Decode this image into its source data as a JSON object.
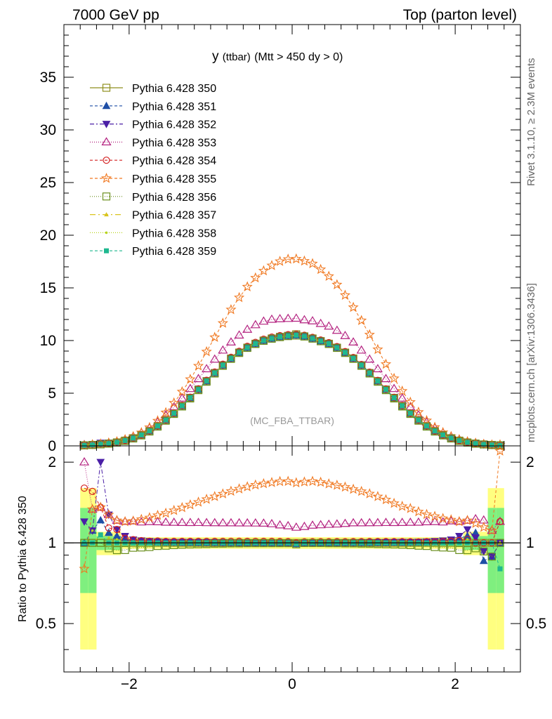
{
  "header": {
    "left": "7000 GeV pp",
    "right": "Top (parton level)",
    "side_top": "Rivet 3.1.10, ≥ 2.3M events",
    "side_bottom": "mcplots.cern.ch [arXiv:1306.3436]"
  },
  "chart_data": [
    {
      "type": "line",
      "title_main": "y",
      "title_small": "(ttbar)",
      "title_rest": "(Mtt > 450 dy > 0)",
      "watermark": "(MC_FBA_TTBAR)",
      "xlabel": "",
      "ylabel": "",
      "xlim": [
        -2.8,
        2.8
      ],
      "ylim": [
        0,
        40
      ],
      "yticks": [
        0,
        5,
        10,
        15,
        20,
        25,
        30,
        35
      ],
      "x": [
        -2.55,
        -2.45,
        -2.35,
        -2.25,
        -2.15,
        -2.05,
        -1.95,
        -1.85,
        -1.75,
        -1.65,
        -1.55,
        -1.45,
        -1.35,
        -1.25,
        -1.15,
        -1.05,
        -0.95,
        -0.85,
        -0.75,
        -0.65,
        -0.55,
        -0.45,
        -0.35,
        -0.25,
        -0.15,
        -0.05,
        0.05,
        0.15,
        0.25,
        0.35,
        0.45,
        0.55,
        0.65,
        0.75,
        0.85,
        0.95,
        1.05,
        1.15,
        1.25,
        1.35,
        1.45,
        1.55,
        1.65,
        1.75,
        1.85,
        1.95,
        2.05,
        2.15,
        2.25,
        2.35,
        2.45,
        2.55
      ],
      "series": [
        {
          "name": "Pythia 6.428 350",
          "color": "#8f8f1f",
          "marker": "square-open",
          "dash": "",
          "values": [
            0.05,
            0.09,
            0.14,
            0.22,
            0.33,
            0.5,
            0.73,
            1.03,
            1.41,
            1.88,
            2.45,
            3.09,
            3.8,
            4.56,
            5.35,
            6.15,
            6.92,
            7.65,
            8.3,
            8.86,
            9.33,
            9.7,
            10.0,
            10.2,
            10.35,
            10.45,
            10.6,
            10.4,
            10.2,
            9.95,
            9.7,
            9.33,
            8.86,
            8.3,
            7.65,
            6.92,
            6.15,
            5.35,
            4.56,
            3.8,
            3.09,
            2.45,
            1.88,
            1.41,
            1.03,
            0.73,
            0.5,
            0.33,
            0.22,
            0.14,
            0.09,
            0.05
          ]
        },
        {
          "name": "Pythia 6.428 351",
          "color": "#1f4fa6",
          "marker": "triangle-up",
          "dash": "4,3",
          "values": [
            0.05,
            0.1,
            0.17,
            0.24,
            0.35,
            0.52,
            0.74,
            1.04,
            1.42,
            1.89,
            2.46,
            3.1,
            3.81,
            4.57,
            5.36,
            6.16,
            6.93,
            7.66,
            8.31,
            8.87,
            9.34,
            9.71,
            10.01,
            10.21,
            10.36,
            10.46,
            10.5,
            10.41,
            10.21,
            9.96,
            9.71,
            9.34,
            8.87,
            8.31,
            7.66,
            6.93,
            6.16,
            5.36,
            4.57,
            3.81,
            3.1,
            2.46,
            1.89,
            1.42,
            1.04,
            0.74,
            0.52,
            0.35,
            0.24,
            0.12,
            0.08,
            0.05
          ]
        },
        {
          "name": "Pythia 6.428 352",
          "color": "#4a1fa6",
          "marker": "triangle-down",
          "dash": "6,3,2,3",
          "values": [
            0.06,
            0.1,
            0.28,
            0.28,
            0.37,
            0.53,
            0.75,
            1.05,
            1.43,
            1.9,
            2.47,
            3.11,
            3.83,
            4.59,
            5.38,
            6.18,
            6.95,
            7.68,
            8.33,
            8.89,
            9.36,
            9.73,
            10.03,
            10.23,
            10.38,
            10.48,
            10.55,
            10.43,
            10.23,
            9.98,
            9.73,
            9.36,
            8.89,
            8.33,
            7.68,
            6.95,
            6.18,
            5.38,
            4.59,
            3.83,
            3.11,
            2.47,
            1.9,
            1.43,
            1.05,
            0.75,
            0.53,
            0.37,
            0.23,
            0.13,
            0.08,
            0.05
          ]
        },
        {
          "name": "Pythia 6.428 353",
          "color": "#b3207f",
          "marker": "triangle-open",
          "dash": "1,2",
          "values": [
            0.1,
            0.12,
            0.19,
            0.28,
            0.4,
            0.6,
            0.88,
            1.23,
            1.69,
            2.25,
            2.92,
            3.68,
            4.52,
            5.42,
            6.36,
            7.3,
            8.21,
            9.07,
            9.84,
            10.5,
            11.05,
            11.48,
            11.82,
            12.0,
            12.05,
            12.08,
            12.1,
            11.95,
            11.85,
            11.6,
            11.35,
            10.95,
            10.45,
            9.84,
            9.07,
            8.21,
            7.3,
            6.36,
            5.42,
            4.52,
            3.68,
            2.92,
            2.25,
            1.69,
            1.23,
            0.88,
            0.6,
            0.4,
            0.27,
            0.17,
            0.1,
            0.06
          ]
        },
        {
          "name": "Pythia 6.428 354",
          "color": "#d42020",
          "marker": "circle-open",
          "dash": "4,3",
          "values": [
            0.08,
            0.14,
            0.19,
            0.25,
            0.37,
            0.52,
            0.75,
            1.05,
            1.43,
            1.91,
            2.48,
            3.13,
            3.85,
            4.62,
            5.42,
            6.23,
            7.01,
            7.75,
            8.41,
            8.98,
            9.45,
            9.83,
            10.13,
            10.33,
            10.47,
            10.56,
            10.6,
            10.5,
            10.3,
            10.05,
            9.8,
            9.43,
            8.95,
            8.39,
            7.73,
            7.0,
            6.22,
            5.41,
            4.61,
            3.84,
            3.12,
            2.47,
            1.9,
            1.42,
            1.04,
            0.74,
            0.51,
            0.34,
            0.22,
            0.14,
            0.09,
            0.06
          ]
        },
        {
          "name": "Pythia 6.428 355",
          "color": "#f07820",
          "marker": "star-open",
          "dash": "4,3",
          "values": [
            0.04,
            0.12,
            0.19,
            0.28,
            0.4,
            0.6,
            0.88,
            1.26,
            1.75,
            2.38,
            3.16,
            4.08,
            5.14,
            6.32,
            7.59,
            8.94,
            10.3,
            11.65,
            12.93,
            14.08,
            15.1,
            15.95,
            16.62,
            17.12,
            17.52,
            17.72,
            17.75,
            17.55,
            17.3,
            16.75,
            16.1,
            15.3,
            14.3,
            13.15,
            11.9,
            10.55,
            9.15,
            7.75,
            6.4,
            5.2,
            4.15,
            3.2,
            2.4,
            1.77,
            1.27,
            0.89,
            0.6,
            0.4,
            0.26,
            0.16,
            0.1,
            0.11
          ]
        },
        {
          "name": "Pythia 6.428 356",
          "color": "#6b8f1f",
          "marker": "square-open",
          "dash": "1,2",
          "values": [
            0.05,
            0.09,
            0.14,
            0.21,
            0.31,
            0.47,
            0.7,
            0.99,
            1.36,
            1.83,
            2.39,
            3.03,
            3.74,
            4.5,
            5.29,
            6.09,
            6.87,
            7.6,
            8.26,
            8.82,
            9.3,
            9.67,
            9.97,
            10.17,
            10.32,
            10.42,
            10.47,
            10.38,
            10.18,
            9.93,
            9.67,
            9.3,
            8.82,
            8.26,
            7.6,
            6.87,
            6.09,
            5.29,
            4.5,
            3.74,
            3.03,
            2.39,
            1.83,
            1.36,
            0.99,
            0.7,
            0.47,
            0.31,
            0.21,
            0.13,
            0.08,
            0.05
          ]
        },
        {
          "name": "Pythia 6.428 357",
          "color": "#d9c41f",
          "marker": "dot-tri",
          "dash": "8,4,2,4",
          "values": [
            0.05,
            0.09,
            0.15,
            0.22,
            0.33,
            0.5,
            0.73,
            1.03,
            1.41,
            1.88,
            2.45,
            3.09,
            3.8,
            4.56,
            5.35,
            6.15,
            6.92,
            7.65,
            8.3,
            8.86,
            9.33,
            9.7,
            10.0,
            10.2,
            10.35,
            10.45,
            10.5,
            10.4,
            10.2,
            9.95,
            9.7,
            9.33,
            8.86,
            8.3,
            7.65,
            6.92,
            6.15,
            5.35,
            4.56,
            3.8,
            3.09,
            2.45,
            1.88,
            1.41,
            1.03,
            0.73,
            0.5,
            0.33,
            0.22,
            0.14,
            0.09,
            0.05
          ]
        },
        {
          "name": "Pythia 6.428 358",
          "color": "#b8d41f",
          "marker": "dot",
          "dash": "1,2",
          "values": [
            0.05,
            0.1,
            0.15,
            0.23,
            0.34,
            0.5,
            0.74,
            1.04,
            1.42,
            1.89,
            2.46,
            3.1,
            3.81,
            4.57,
            5.36,
            6.16,
            6.93,
            7.66,
            8.31,
            8.87,
            9.34,
            9.71,
            10.01,
            10.21,
            10.36,
            10.46,
            10.52,
            10.41,
            10.21,
            9.96,
            9.71,
            9.34,
            8.87,
            8.31,
            7.66,
            6.93,
            6.16,
            5.36,
            4.57,
            3.81,
            3.1,
            2.46,
            1.89,
            1.42,
            1.04,
            0.74,
            0.5,
            0.34,
            0.22,
            0.14,
            0.09,
            0.05
          ]
        },
        {
          "name": "Pythia 6.428 359",
          "color": "#1fb88f",
          "marker": "square-filled",
          "dash": "4,3",
          "values": [
            0.05,
            0.09,
            0.15,
            0.22,
            0.33,
            0.5,
            0.73,
            1.03,
            1.41,
            1.88,
            2.45,
            3.09,
            3.8,
            4.56,
            5.35,
            6.15,
            6.92,
            7.65,
            8.3,
            8.86,
            9.33,
            9.7,
            10.0,
            10.2,
            10.35,
            10.45,
            10.5,
            10.4,
            10.2,
            9.95,
            9.7,
            9.33,
            8.86,
            8.3,
            7.65,
            6.92,
            6.15,
            5.35,
            4.56,
            3.8,
            3.09,
            2.45,
            1.88,
            1.41,
            1.03,
            0.73,
            0.5,
            0.33,
            0.22,
            0.14,
            0.09,
            0.04
          ]
        }
      ]
    },
    {
      "type": "line",
      "ylabel": "Ratio to Pythia 6.428 350",
      "xlim": [
        -2.8,
        2.8
      ],
      "ylim": [
        0.33,
        2.3
      ],
      "yticks": [
        0.5,
        1,
        2
      ],
      "ytick_labels": [
        "0.5",
        "1",
        "2"
      ],
      "xticks": [
        -2,
        0,
        2
      ],
      "xtick_labels": [
        "−2",
        "0",
        "2"
      ],
      "reference_line": 1,
      "band_colors": {
        "inner": "#7fef7f",
        "outer": "#ffff80"
      }
    }
  ]
}
